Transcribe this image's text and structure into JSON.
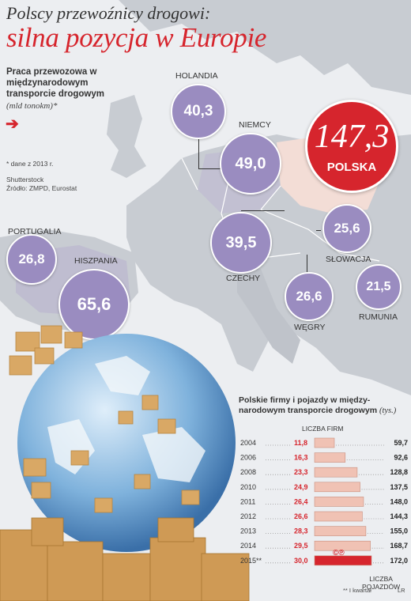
{
  "header": {
    "title_line1": "Polscy przewoźnicy drogowi:",
    "title_line2": "silna pozycja w Europie",
    "subtitle": "Praca przewozowa w międzynarodowym transporcie drogowym",
    "unit": "(mld tonokm)*",
    "note": "* dane z 2013 r.",
    "source_line1": "Shutterstock",
    "source_line2": "Źródło: ZMPD, Eurostat"
  },
  "chart_data": [
    {
      "type": "bubble-map",
      "title": "Praca przewozowa w międzynarodowym transporcie drogowym",
      "unit": "(mld tonokm)*",
      "points": [
        {
          "name": "HOLANDIA",
          "value": 40.3,
          "label": "40,3"
        },
        {
          "name": "NIEMCY",
          "value": 49.0,
          "label": "49,0"
        },
        {
          "name": "POLSKA",
          "value": 147.3,
          "label": "147,3",
          "highlight": true
        },
        {
          "name": "PORTUGALIA",
          "value": 26.8,
          "label": "26,8"
        },
        {
          "name": "HISZPANIA",
          "value": 65.6,
          "label": "65,6"
        },
        {
          "name": "CZECHY",
          "value": 39.5,
          "label": "39,5"
        },
        {
          "name": "SŁOWACJA",
          "value": 25.6,
          "label": "25,6"
        },
        {
          "name": "WĘGRY",
          "value": 26.6,
          "label": "26,6"
        },
        {
          "name": "RUMUNIA",
          "value": 21.5,
          "label": "21,5"
        }
      ]
    },
    {
      "type": "table",
      "title": "Polskie firmy i pojazdy w międzynarodowym transporcie drogowym",
      "title_line1": "Polskie firmy i pojazdy w między-",
      "title_line2": "narodowym transporcie drogowym",
      "unit": "(tys.)",
      "column_firms": "LICZBA FIRM",
      "column_vehicles_line1": "LICZBA",
      "column_vehicles_line2": "POJAZDÓW",
      "rows": [
        {
          "year": "2004",
          "firms": 11.8,
          "firms_label": "11,8",
          "vehicles": 59.7,
          "vehicles_label": "59,7"
        },
        {
          "year": "2006",
          "firms": 16.3,
          "firms_label": "16,3",
          "vehicles": 92.6,
          "vehicles_label": "92,6"
        },
        {
          "year": "2008",
          "firms": 23.3,
          "firms_label": "23,3",
          "vehicles": 128.8,
          "vehicles_label": "128,8"
        },
        {
          "year": "2010",
          "firms": 24.9,
          "firms_label": "24,9",
          "vehicles": 137.5,
          "vehicles_label": "137,5"
        },
        {
          "year": "2011",
          "firms": 26.4,
          "firms_label": "26,4",
          "vehicles": 148.0,
          "vehicles_label": "148,0"
        },
        {
          "year": "2012",
          "firms": 26.6,
          "firms_label": "26,6",
          "vehicles": 144.3,
          "vehicles_label": "144,3"
        },
        {
          "year": "2013",
          "firms": 28.3,
          "firms_label": "28,3",
          "vehicles": 155.0,
          "vehicles_label": "155,0"
        },
        {
          "year": "2014",
          "firms": 29.5,
          "firms_label": "29,5",
          "vehicles": 168.7,
          "vehicles_label": "168,7"
        },
        {
          "year": "2015**",
          "firms": 30.0,
          "firms_label": "30,0",
          "vehicles": 172.0,
          "vehicles_label": "172,0",
          "highlight": true
        }
      ],
      "footnote": "** I kwartał"
    }
  ],
  "footer": {
    "logo_text": "©℗",
    "corner_mark": "LR"
  },
  "colors": {
    "accent_red": "#d6252d",
    "bubble_purple": "#9a8cc0",
    "bar_fill": "#f0c2b4",
    "highlight_bar": "#d6252d",
    "map_land": "#c6cad0",
    "map_sea": "#e7e9ec"
  }
}
